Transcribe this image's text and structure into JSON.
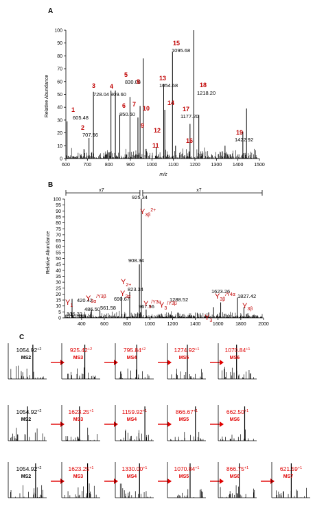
{
  "panels": {
    "a": "A",
    "b": "B",
    "c": "C"
  },
  "chart_data": [
    {
      "type": "bar",
      "title": "",
      "xlabel": "m/z",
      "ylabel": "Relative Abundance",
      "xlim": [
        600,
        1500
      ],
      "ylim": [
        0,
        100
      ],
      "xticks": [
        600,
        700,
        800,
        900,
        1000,
        1100,
        1200,
        1300,
        1400,
        1500
      ],
      "yticks": [
        0,
        10,
        20,
        30,
        40,
        50,
        60,
        70,
        80,
        90,
        100
      ],
      "peaks": [
        {
          "x": 605.48,
          "y": 29
        },
        {
          "x": 707.56,
          "y": 16
        },
        {
          "x": 728.04,
          "y": 52
        },
        {
          "x": 809.6,
          "y": 53
        },
        {
          "x": 830.08,
          "y": 53
        },
        {
          "x": 850.6,
          "y": 34
        },
        {
          "x": 898,
          "y": 48
        },
        {
          "x": 935,
          "y": 32
        },
        {
          "x": 945,
          "y": 41
        },
        {
          "x": 960,
          "y": 78
        },
        {
          "x": 1054.68,
          "y": 58
        },
        {
          "x": 1060,
          "y": 38
        },
        {
          "x": 1095.68,
          "y": 83
        },
        {
          "x": 1177.2,
          "y": 27
        },
        {
          "x": 1195,
          "y": 100
        },
        {
          "x": 1218.2,
          "y": 34
        },
        {
          "x": 1422.92,
          "y": 21
        },
        {
          "x": 1440,
          "y": 39
        },
        {
          "x": 1340,
          "y": 10
        },
        {
          "x": 1020,
          "y": 9
        },
        {
          "x": 1110,
          "y": 10
        }
      ],
      "annotations": [
        {
          "num": "1",
          "mz": "605.48"
        },
        {
          "num": "2",
          "mz": "707.56"
        },
        {
          "num": "3",
          "mz": "728.04"
        },
        {
          "num": "4",
          "mz": "809.60"
        },
        {
          "num": "5",
          "mz": "830.08"
        },
        {
          "num": "6",
          "mz": "850.60"
        },
        {
          "num": "7",
          "mz": ""
        },
        {
          "num": "8",
          "mz": ""
        },
        {
          "num": "9",
          "mz": ""
        },
        {
          "num": "10",
          "mz": ""
        },
        {
          "num": "11",
          "mz": ""
        },
        {
          "num": "12",
          "mz": ""
        },
        {
          "num": "13",
          "mz": "1054.68"
        },
        {
          "num": "14",
          "mz": ""
        },
        {
          "num": "15",
          "mz": "1095.68"
        },
        {
          "num": "16",
          "mz": ""
        },
        {
          "num": "17",
          "mz": "1177.20"
        },
        {
          "num": "18",
          "mz": "1218.20"
        },
        {
          "num": "19",
          "mz": "1422.92"
        }
      ]
    },
    {
      "type": "bar",
      "title": "",
      "xlabel": "",
      "ylabel": "Relative Abundance",
      "xlim": [
        250,
        2000
      ],
      "ylim": [
        0,
        100
      ],
      "xticks": [
        400,
        600,
        800,
        1000,
        1200,
        1400,
        1600,
        1800,
        2000
      ],
      "yticks": [
        0,
        5,
        10,
        15,
        20,
        25,
        30,
        35,
        40,
        45,
        50,
        55,
        60,
        65,
        70,
        75,
        80,
        85,
        90,
        95,
        100
      ],
      "magnification": [
        "x7",
        "x7"
      ],
      "peaks": [
        {
          "x": 316.33,
          "y": 16
        },
        {
          "x": 420.42,
          "y": 3
        },
        {
          "x": 486.5,
          "y": 7
        },
        {
          "x": 561.58,
          "y": 6
        },
        {
          "x": 690.67,
          "y": 3
        },
        {
          "x": 752,
          "y": 18
        },
        {
          "x": 823.34,
          "y": 22
        },
        {
          "x": 908.34,
          "y": 45
        },
        {
          "x": 925.34,
          "y": 100
        },
        {
          "x": 967.56,
          "y": 7
        },
        {
          "x": 1288.52,
          "y": 3
        },
        {
          "x": 1623.26,
          "y": 13
        },
        {
          "x": 1827.42,
          "y": 9
        },
        {
          "x": 1770,
          "y": 17
        },
        {
          "x": 1560,
          "y": 9
        }
      ],
      "peak_labels": [
        "316.33",
        "420.42",
        "486.50",
        "561.58",
        "690.67",
        "823.34",
        "908.34",
        "925.34",
        "967.56",
        "1288.52",
        "1623.26",
        "1827.42"
      ]
    }
  ],
  "msn": {
    "rows": [
      [
        {
          "mz": "1054.92",
          "ch": "+2",
          "stage": "MS2",
          "black": true
        },
        {
          "mz": "925.42",
          "ch": "+2",
          "stage": "MS3"
        },
        {
          "mz": "795.84",
          "ch": "+2",
          "stage": "MS4"
        },
        {
          "mz": "1274.92",
          "ch": "+1",
          "stage": "MS5"
        },
        {
          "mz": "1070.84",
          "ch": "+1",
          "stage": "MS6"
        }
      ],
      [
        {
          "mz": "1054.92",
          "ch": "+2",
          "stage": "MS2",
          "black": true
        },
        {
          "mz": "1623.25",
          "ch": "+1",
          "stage": "MS3"
        },
        {
          "mz": "1159.92",
          "ch": "+1",
          "stage": "MS4"
        },
        {
          "mz": "866.67",
          "ch": "+1",
          "stage": "MS5"
        },
        {
          "mz": "662.50",
          "ch": "+1",
          "stage": "MS6"
        }
      ],
      [
        {
          "mz": "1054.92",
          "ch": "+2",
          "stage": "MS2",
          "black": true
        },
        {
          "mz": "1623.25",
          "ch": "+1",
          "stage": "MS3"
        },
        {
          "mz": "1330.00",
          "ch": "+1",
          "stage": "MS4"
        },
        {
          "mz": "1070.84",
          "ch": "+1",
          "stage": "MS5"
        },
        {
          "mz": "866.75",
          "ch": "+1",
          "stage": "MS6"
        },
        {
          "mz": "621.59",
          "ch": "+1",
          "stage": "MS7"
        }
      ]
    ]
  }
}
